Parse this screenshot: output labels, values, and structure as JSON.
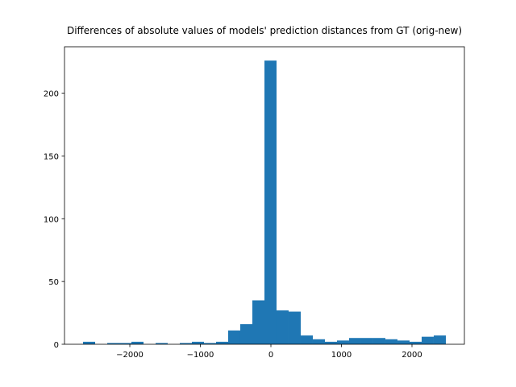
{
  "chart_data": {
    "type": "histogram",
    "title": "Differences of absolute values of models' prediction distances from GT (orig-new)",
    "bins": [
      -2663,
      -2491.6,
      -2320.1,
      -2148.7,
      -1977.3,
      -1805.9,
      -1634.4,
      -1463,
      -1291.6,
      -1120.1,
      -948.7,
      -777.3,
      -605.9,
      -434.4,
      -263,
      -91.6,
      79.9,
      251.3,
      422.7,
      594.1,
      765.6,
      937,
      1108.4,
      1279.9,
      1451.3,
      1622.7,
      1794.1,
      1965.6,
      2137,
      2308.4,
      2480
    ],
    "values": [
      2,
      0,
      1,
      1,
      2,
      0,
      1,
      0,
      1,
      2,
      1,
      2,
      11,
      16,
      35,
      226,
      27,
      26,
      7,
      4,
      2,
      3,
      5,
      5,
      5,
      4,
      3,
      2,
      6,
      7
    ],
    "color": "#1f77b4",
    "xlim": [
      -2926,
      2743
    ],
    "ylim": [
      0,
      237
    ],
    "xticks": [
      {
        "value": -2000,
        "label": "−2000"
      },
      {
        "value": -1000,
        "label": "−1000"
      },
      0,
      1000,
      2000
    ],
    "yticks": [
      0,
      50,
      100,
      150,
      200
    ]
  }
}
